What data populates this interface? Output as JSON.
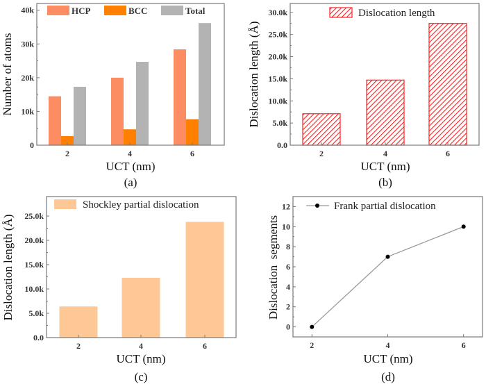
{
  "chart_data": [
    {
      "id": "a",
      "type": "bar",
      "panel_label": "(a)",
      "title": "",
      "xlabel": "UCT (nm)",
      "ylabel": "Number of atoms",
      "categories": [
        "2",
        "4",
        "6"
      ],
      "series": [
        {
          "name": "HCP",
          "values": [
            14500,
            20000,
            28400
          ],
          "color": "#fc8d62"
        },
        {
          "name": "BCC",
          "values": [
            2700,
            4700,
            7700
          ],
          "color": "#ff8000"
        },
        {
          "name": "Total",
          "values": [
            17300,
            24700,
            36200
          ],
          "color": "#b3b3b3"
        }
      ],
      "ylim": [
        0,
        42000
      ],
      "yticks": [
        0,
        10000,
        20000,
        30000,
        40000
      ],
      "ytick_labels": [
        "0",
        "10k",
        "20k",
        "30k",
        "40k"
      ],
      "grid": false,
      "legend": "top, horizontal"
    },
    {
      "id": "b",
      "type": "bar",
      "panel_label": "(b)",
      "title": "",
      "xlabel": "UCT (nm)",
      "ylabel": "Dislocation length (Å)",
      "categories": [
        "2",
        "4",
        "6"
      ],
      "series": [
        {
          "name": "Dislocation length",
          "values": [
            7100,
            14700,
            27500
          ],
          "color": "#ff2020",
          "pattern": "diagonal-hatch"
        }
      ],
      "ylim": [
        0,
        32000
      ],
      "yticks": [
        0,
        5000,
        10000,
        15000,
        20000,
        25000,
        30000
      ],
      "ytick_labels": [
        "0.0",
        "5.0k",
        "10.0k",
        "15.0k",
        "20.0k",
        "25.0k",
        "30.0k"
      ],
      "grid": false,
      "legend": "top-center"
    },
    {
      "id": "c",
      "type": "bar",
      "panel_label": "(c)",
      "title": "",
      "xlabel": "UCT (nm)",
      "ylabel": "Dislocation length (Å)",
      "categories": [
        "2",
        "4",
        "6"
      ],
      "series": [
        {
          "name": "Shockley partial dislocation",
          "values": [
            6400,
            12300,
            23800
          ],
          "color": "#fdc896"
        }
      ],
      "ylim": [
        0,
        29000
      ],
      "yticks": [
        0,
        5000,
        10000,
        15000,
        20000,
        25000
      ],
      "ytick_labels": [
        "0.0",
        "5.0k",
        "10.0k",
        "15.0k",
        "20.0k",
        "25.0k"
      ],
      "grid": false,
      "legend": "top-left"
    },
    {
      "id": "d",
      "type": "line",
      "panel_label": "(d)",
      "title": "",
      "xlabel": "UCT (nm)",
      "ylabel": "Dislocation  segments",
      "x": [
        2,
        4,
        6
      ],
      "series": [
        {
          "name": "Frank partial dislocation",
          "values": [
            0,
            7,
            10
          ],
          "color": "#999999",
          "marker_color": "#000000"
        }
      ],
      "xlim": [
        1.5,
        6.5
      ],
      "ylim": [
        -1,
        13
      ],
      "xticks": [
        2,
        4,
        6
      ],
      "xtick_labels": [
        "2",
        "4",
        "6"
      ],
      "yticks": [
        0,
        2,
        4,
        6,
        8,
        10,
        12
      ],
      "ytick_labels": [
        "0",
        "2",
        "4",
        "6",
        "8",
        "10",
        "12"
      ],
      "grid": false,
      "legend": "top-left"
    }
  ]
}
